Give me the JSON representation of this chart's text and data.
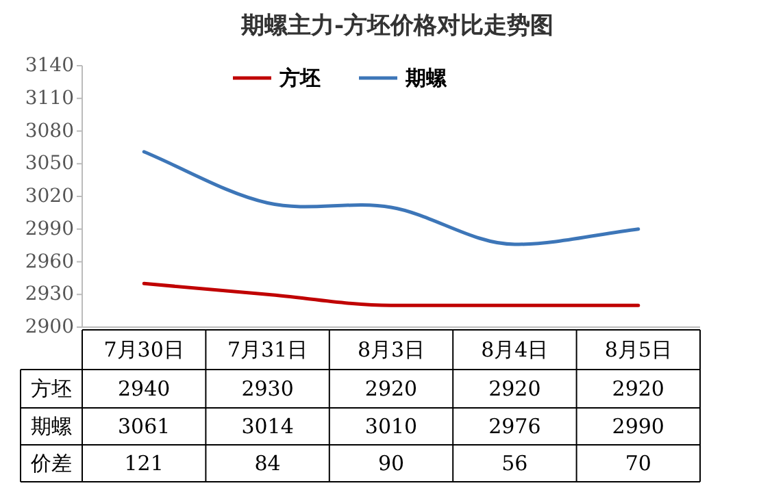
{
  "chart_data": {
    "type": "line",
    "title": "期螺主力-方坯价格对比走势图",
    "categories": [
      "7月30日",
      "7月31日",
      "8月3日",
      "8月4日",
      "8月5日"
    ],
    "series": [
      {
        "name": "方坯",
        "color": "#c00000",
        "values": [
          2940,
          2930,
          2920,
          2920,
          2920
        ]
      },
      {
        "name": "期螺",
        "color": "#3d76b8",
        "values": [
          3061,
          3014,
          3010,
          2976,
          2990
        ]
      }
    ],
    "ylim": [
      2900,
      3140
    ],
    "yticks": [
      2900,
      2930,
      2960,
      2990,
      3020,
      3050,
      3080,
      3110,
      3140
    ],
    "legend": "top",
    "data_labels": true,
    "annotations": [
      "价差",
      "121",
      "84",
      "90",
      "56",
      "70"
    ]
  }
}
